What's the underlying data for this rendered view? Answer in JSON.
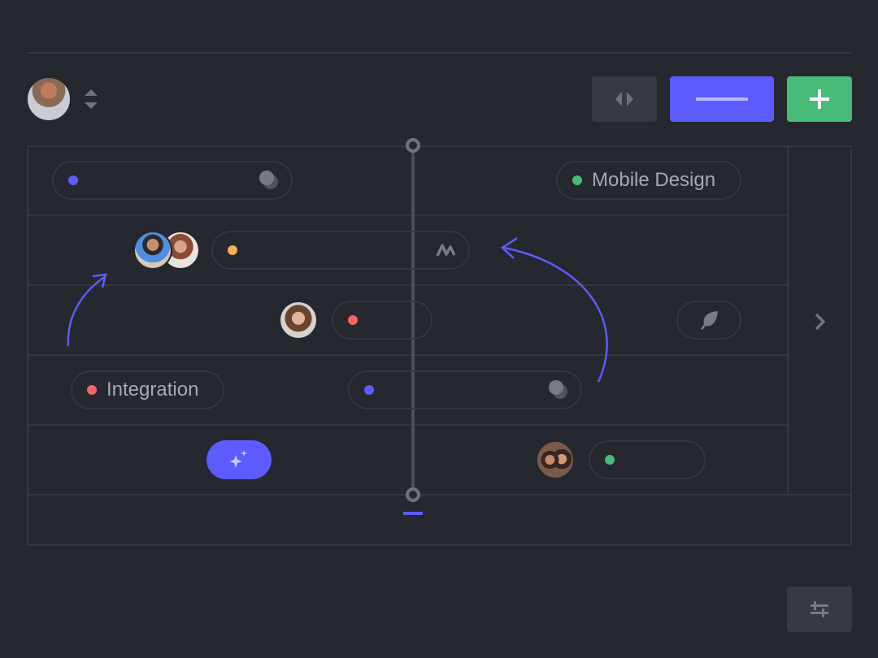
{
  "colors": {
    "background": "#25282e",
    "accent": "#5b5bff",
    "green": "#48bb78",
    "orange": "#f6ad55",
    "red": "#f56565",
    "border": "#33373e"
  },
  "toolbar": {
    "user_avatar": "avatar-man-beanie",
    "sort_icon": "sort-arrows-icon",
    "buttons": [
      {
        "icon": "code-arrows-icon"
      },
      {
        "icon": "minus-icon"
      },
      {
        "icon": "plus-icon"
      }
    ]
  },
  "board": {
    "rows": [
      {
        "items": [
          {
            "type": "pill",
            "dot": "#5b5bff",
            "icon": "moon-icon"
          },
          {
            "type": "pill",
            "dot": "#48bb78",
            "label": "Mobile Design"
          }
        ]
      },
      {
        "items": [
          {
            "type": "avatars",
            "count": 2
          },
          {
            "type": "pill",
            "dot": "#f6ad55",
            "icon": "activity-icon"
          }
        ]
      },
      {
        "items": [
          {
            "type": "avatar"
          },
          {
            "type": "pill",
            "dot": "#f56565"
          },
          {
            "type": "pill",
            "icon": "leaf-icon"
          }
        ]
      },
      {
        "items": [
          {
            "type": "pill",
            "dot": "#f56565",
            "label": "Integration"
          },
          {
            "type": "pill",
            "dot": "#5b5bff",
            "icon": "moon-icon"
          }
        ]
      },
      {
        "items": [
          {
            "type": "button",
            "icon": "sparkles-icon"
          },
          {
            "type": "avatar"
          },
          {
            "type": "pill",
            "dot": "#48bb78"
          }
        ]
      }
    ],
    "side_icon": "chevron-right-icon"
  },
  "footer": {
    "settings_icon": "sliders-icon"
  }
}
